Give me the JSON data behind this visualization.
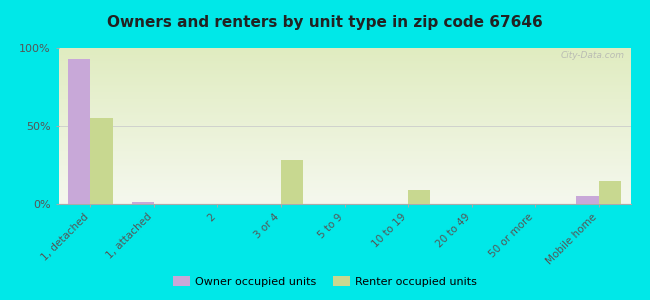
{
  "title": "Owners and renters by unit type in zip code 67646",
  "categories": [
    "1, detached",
    "1, attached",
    "2",
    "3 or 4",
    "5 to 9",
    "10 to 19",
    "20 to 49",
    "50 or more",
    "Mobile home"
  ],
  "owner_values": [
    93,
    1,
    0,
    0,
    0,
    0,
    0,
    0,
    5
  ],
  "renter_values": [
    55,
    0,
    0,
    28,
    0,
    9,
    0,
    0,
    15
  ],
  "owner_color": "#c8a8d8",
  "renter_color": "#c8d890",
  "background_color": "#00e8e8",
  "plot_bg_top": "#f5f8ee",
  "plot_bg_bottom": "#e0ecc0",
  "ylim": [
    0,
    100
  ],
  "yticks": [
    0,
    50,
    100
  ],
  "ytick_labels": [
    "0%",
    "50%",
    "100%"
  ],
  "bar_width": 0.35,
  "legend_owner": "Owner occupied units",
  "legend_renter": "Renter occupied units",
  "watermark": "City-Data.com"
}
